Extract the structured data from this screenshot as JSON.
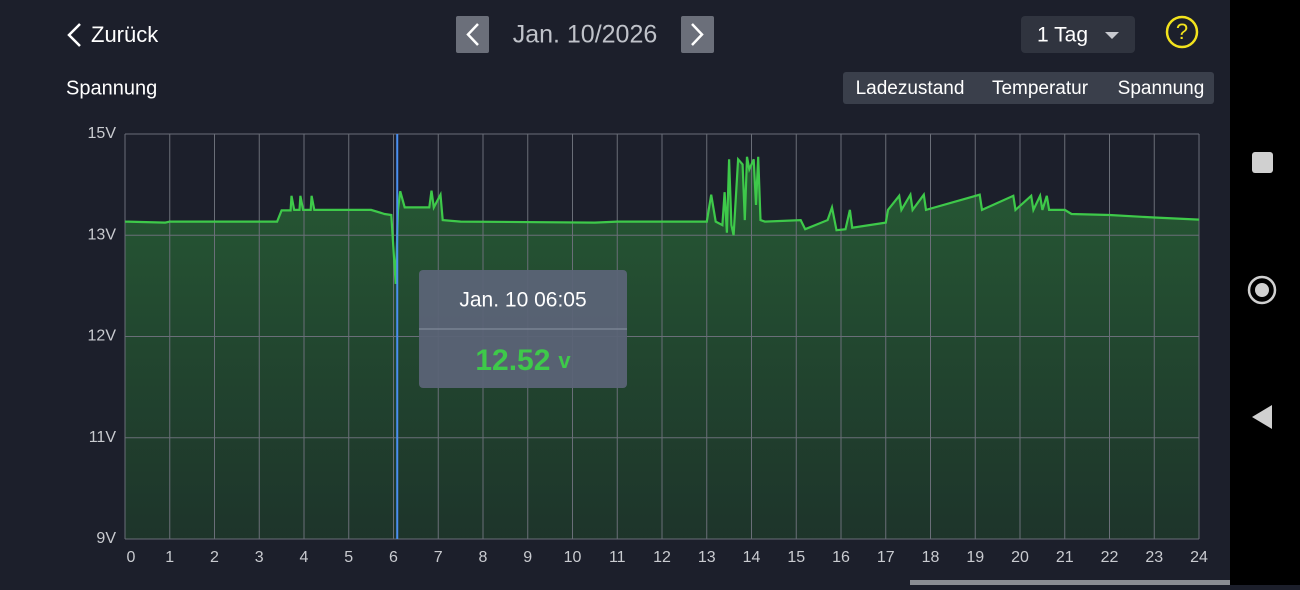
{
  "header": {
    "back": "Zurück",
    "date": "Jan. 10/2026",
    "range": "1 Tag",
    "help": "?"
  },
  "tabs": {
    "items": [
      "Ladezustand",
      "Temperatur",
      "Spannung"
    ],
    "active": 2
  },
  "chart_data": {
    "type": "line",
    "title": "Spannung",
    "color": "#3ec94a",
    "grid": true,
    "x": [
      0,
      0.9,
      1,
      3.4,
      3.5,
      3.7,
      3.72,
      3.78,
      3.9,
      3.92,
      3.98,
      4.15,
      4.17,
      4.23,
      5.5,
      5.8,
      5.95,
      6.05,
      6.1,
      6.15,
      6.25,
      6.8,
      6.85,
      6.9,
      7.05,
      7.1,
      7.5,
      10.5,
      11,
      13,
      13.1,
      13.2,
      13.35,
      13.4,
      13.45,
      13.5,
      13.55,
      13.6,
      13.7,
      13.8,
      13.85,
      13.9,
      13.95,
      14.05,
      14.1,
      14.15,
      14.2,
      14.3,
      15.1,
      15.2,
      15.7,
      15.8,
      15.9,
      16.1,
      16.2,
      16.25,
      17,
      17.05,
      17.3,
      17.35,
      17.55,
      17.6,
      17.85,
      17.9,
      19.1,
      19.15,
      19.85,
      19.9,
      20.25,
      20.3,
      20.45,
      20.5,
      20.6,
      20.65,
      21,
      21.15,
      22,
      23,
      24
    ],
    "values": [
      13.27,
      13.25,
      13.27,
      13.27,
      13.49,
      13.49,
      13.78,
      13.5,
      13.5,
      13.78,
      13.5,
      13.5,
      13.78,
      13.5,
      13.5,
      13.42,
      13.4,
      12.52,
      13.5,
      13.87,
      13.55,
      13.55,
      13.88,
      13.55,
      13.8,
      13.3,
      13.27,
      13.25,
      13.27,
      13.27,
      13.8,
      13.27,
      13.2,
      13.85,
      13.05,
      14.5,
      13.2,
      13.0,
      14.5,
      14.4,
      13.3,
      14.55,
      14.3,
      14.5,
      13.6,
      14.55,
      13.3,
      13.27,
      13.3,
      13.12,
      13.3,
      13.55,
      13.1,
      13.12,
      13.5,
      13.15,
      13.25,
      13.5,
      13.78,
      13.5,
      13.8,
      13.5,
      13.8,
      13.5,
      13.8,
      13.5,
      13.78,
      13.5,
      13.78,
      13.5,
      13.78,
      13.5,
      13.78,
      13.5,
      13.5,
      13.42,
      13.4,
      13.35,
      13.31
    ],
    "xlim": [
      0,
      24
    ],
    "xticks": [
      0,
      1,
      2,
      3,
      4,
      5,
      6,
      7,
      8,
      9,
      10,
      11,
      12,
      13,
      14,
      15,
      16,
      17,
      18,
      19,
      20,
      21,
      22,
      23,
      24
    ],
    "ylim": [
      9,
      15
    ],
    "yticks": [
      {
        "value": 15,
        "label": "15V"
      },
      {
        "value": 13,
        "label": "13V"
      },
      {
        "value": 12,
        "label": "12V"
      },
      {
        "value": 11,
        "label": "11V"
      },
      {
        "value": 9,
        "label": "9V"
      }
    ],
    "tooltip": {
      "time": "Jan. 10 06:05",
      "value": 12.52,
      "unit": "v"
    }
  }
}
